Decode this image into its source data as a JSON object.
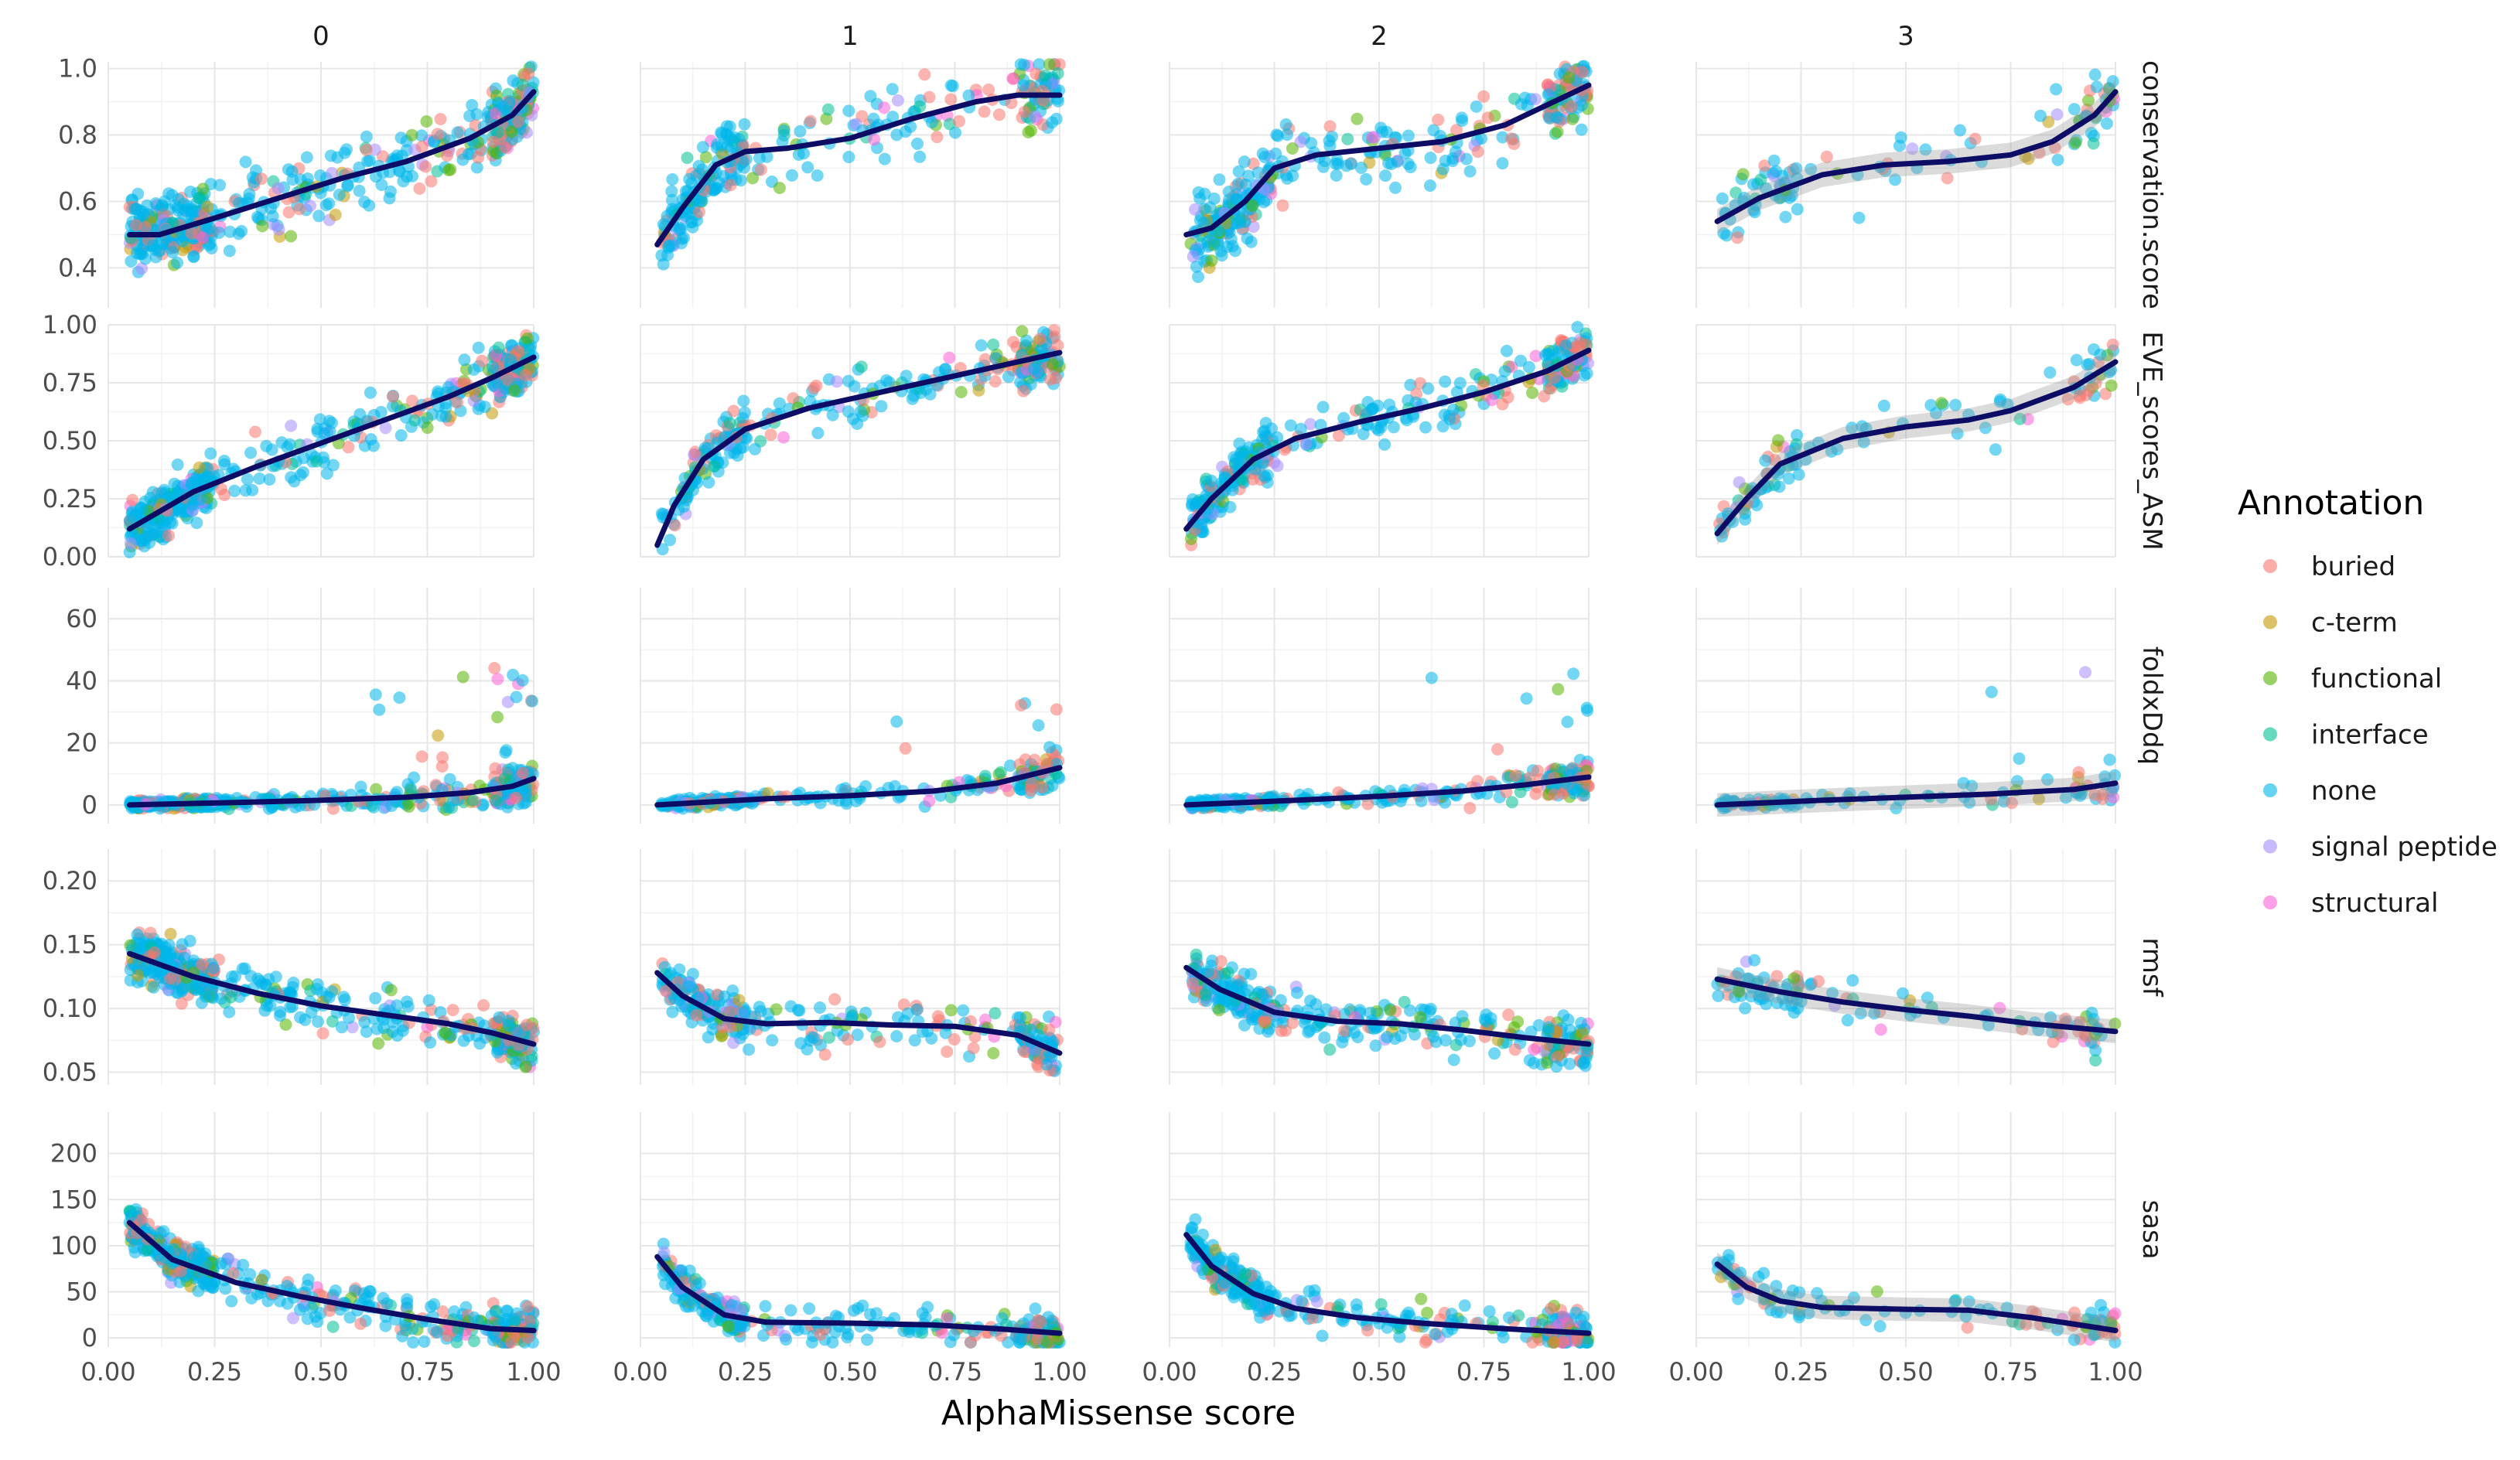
{
  "chart_data": {
    "type": "scatter",
    "layout": "facet_grid",
    "xlabel": "AlphaMissense score",
    "x_ticks": [
      "0.00",
      "0.25",
      "0.50",
      "0.75",
      "1.00"
    ],
    "xlim": [
      0.0,
      1.0
    ],
    "col_facets": [
      "0",
      "1",
      "2",
      "3"
    ],
    "row_facets": [
      {
        "name": "conservation.score",
        "ylim": [
          0.28,
          1.02
        ],
        "ticks": [
          {
            "v": 0.4,
            "label": "0.4"
          },
          {
            "v": 0.6,
            "label": "0.6"
          },
          {
            "v": 0.8,
            "label": "0.8"
          },
          {
            "v": 1.0,
            "label": "1.0"
          }
        ]
      },
      {
        "name": "EVE_scores_ASM",
        "ylim": [
          0.0,
          1.0
        ],
        "ticks": [
          {
            "v": 0.0,
            "label": "0.00"
          },
          {
            "v": 0.25,
            "label": "0.25"
          },
          {
            "v": 0.5,
            "label": "0.50"
          },
          {
            "v": 0.75,
            "label": "0.75"
          },
          {
            "v": 1.0,
            "label": "1.00"
          }
        ]
      },
      {
        "name": "foldxDdq",
        "ylim": [
          -6,
          70
        ],
        "ticks": [
          {
            "v": 0,
            "label": "0"
          },
          {
            "v": 20,
            "label": "20"
          },
          {
            "v": 40,
            "label": "40"
          },
          {
            "v": 60,
            "label": "60"
          }
        ]
      },
      {
        "name": "rmsf",
        "ylim": [
          0.04,
          0.225
        ],
        "ticks": [
          {
            "v": 0.05,
            "label": "0.05"
          },
          {
            "v": 0.1,
            "label": "0.10"
          },
          {
            "v": 0.15,
            "label": "0.15"
          },
          {
            "v": 0.2,
            "label": "0.20"
          }
        ]
      },
      {
        "name": "sasa",
        "ylim": [
          -10,
          245
        ],
        "ticks": [
          {
            "v": 0,
            "label": "0"
          },
          {
            "v": 50,
            "label": "50"
          },
          {
            "v": 100,
            "label": "100"
          },
          {
            "v": 150,
            "label": "150"
          },
          {
            "v": 200,
            "label": "200"
          }
        ]
      }
    ],
    "legend": {
      "title": "Annotation",
      "position": "right",
      "entries": [
        {
          "label": "buried",
          "color": "#F8766D"
        },
        {
          "label": "c-term",
          "color": "#C49A00"
        },
        {
          "label": "functional",
          "color": "#53B400"
        },
        {
          "label": "interface",
          "color": "#00C094"
        },
        {
          "label": "none",
          "color": "#00B6EB"
        },
        {
          "label": "signal peptide",
          "color": "#A58AFF"
        },
        {
          "label": "structural",
          "color": "#FB61D7"
        }
      ]
    },
    "smooth_color": "#0d0d66",
    "smooth_curves": [
      [
        [
          [
            0.05,
            0.5
          ],
          [
            0.12,
            0.5
          ],
          [
            0.25,
            0.55
          ],
          [
            0.4,
            0.61
          ],
          [
            0.55,
            0.67
          ],
          [
            0.7,
            0.72
          ],
          [
            0.85,
            0.79
          ],
          [
            0.95,
            0.86
          ],
          [
            1.0,
            0.93
          ]
        ],
        [
          [
            0.05,
            0.12
          ],
          [
            0.2,
            0.28
          ],
          [
            0.35,
            0.39
          ],
          [
            0.5,
            0.49
          ],
          [
            0.65,
            0.59
          ],
          [
            0.8,
            0.69
          ],
          [
            0.9,
            0.77
          ],
          [
            1.0,
            0.86
          ]
        ],
        [
          [
            0.05,
            0.0
          ],
          [
            0.3,
            0.8
          ],
          [
            0.5,
            1.5
          ],
          [
            0.7,
            2.5
          ],
          [
            0.85,
            4.0
          ],
          [
            0.95,
            6.0
          ],
          [
            1.0,
            8.5
          ]
        ],
        [
          [
            0.05,
            0.143
          ],
          [
            0.2,
            0.125
          ],
          [
            0.35,
            0.112
          ],
          [
            0.5,
            0.102
          ],
          [
            0.65,
            0.095
          ],
          [
            0.8,
            0.088
          ],
          [
            0.9,
            0.081
          ],
          [
            1.0,
            0.072
          ]
        ],
        [
          [
            0.05,
            125
          ],
          [
            0.15,
            85
          ],
          [
            0.3,
            60
          ],
          [
            0.45,
            45
          ],
          [
            0.6,
            32
          ],
          [
            0.75,
            20
          ],
          [
            0.9,
            10
          ],
          [
            1.0,
            8
          ]
        ]
      ],
      [
        [
          [
            0.04,
            0.47
          ],
          [
            0.1,
            0.58
          ],
          [
            0.18,
            0.71
          ],
          [
            0.25,
            0.75
          ],
          [
            0.35,
            0.76
          ],
          [
            0.5,
            0.79
          ],
          [
            0.65,
            0.85
          ],
          [
            0.8,
            0.9
          ],
          [
            0.9,
            0.92
          ],
          [
            1.0,
            0.92
          ]
        ],
        [
          [
            0.04,
            0.05
          ],
          [
            0.08,
            0.22
          ],
          [
            0.15,
            0.42
          ],
          [
            0.25,
            0.55
          ],
          [
            0.4,
            0.64
          ],
          [
            0.55,
            0.7
          ],
          [
            0.7,
            0.76
          ],
          [
            0.85,
            0.82
          ],
          [
            1.0,
            0.88
          ]
        ],
        [
          [
            0.04,
            0.0
          ],
          [
            0.3,
            2.0
          ],
          [
            0.5,
            3.0
          ],
          [
            0.7,
            4.5
          ],
          [
            0.85,
            7.0
          ],
          [
            1.0,
            12.0
          ]
        ],
        [
          [
            0.04,
            0.128
          ],
          [
            0.1,
            0.11
          ],
          [
            0.2,
            0.092
          ],
          [
            0.3,
            0.088
          ],
          [
            0.45,
            0.089
          ],
          [
            0.6,
            0.087
          ],
          [
            0.75,
            0.086
          ],
          [
            0.9,
            0.079
          ],
          [
            1.0,
            0.065
          ]
        ],
        [
          [
            0.04,
            88
          ],
          [
            0.1,
            55
          ],
          [
            0.2,
            25
          ],
          [
            0.3,
            17
          ],
          [
            0.5,
            16
          ],
          [
            0.7,
            14
          ],
          [
            0.85,
            10
          ],
          [
            1.0,
            5
          ]
        ]
      ],
      [
        [
          [
            0.04,
            0.5
          ],
          [
            0.1,
            0.52
          ],
          [
            0.18,
            0.6
          ],
          [
            0.25,
            0.7
          ],
          [
            0.35,
            0.74
          ],
          [
            0.5,
            0.76
          ],
          [
            0.65,
            0.78
          ],
          [
            0.8,
            0.83
          ],
          [
            0.9,
            0.89
          ],
          [
            1.0,
            0.95
          ]
        ],
        [
          [
            0.04,
            0.12
          ],
          [
            0.1,
            0.25
          ],
          [
            0.2,
            0.42
          ],
          [
            0.3,
            0.51
          ],
          [
            0.45,
            0.58
          ],
          [
            0.6,
            0.64
          ],
          [
            0.75,
            0.71
          ],
          [
            0.9,
            0.8
          ],
          [
            1.0,
            0.89
          ]
        ],
        [
          [
            0.04,
            0.0
          ],
          [
            0.3,
            1.5
          ],
          [
            0.5,
            2.8
          ],
          [
            0.7,
            4.5
          ],
          [
            0.85,
            6.5
          ],
          [
            1.0,
            9.0
          ]
        ],
        [
          [
            0.04,
            0.132
          ],
          [
            0.12,
            0.115
          ],
          [
            0.25,
            0.097
          ],
          [
            0.4,
            0.09
          ],
          [
            0.55,
            0.088
          ],
          [
            0.7,
            0.083
          ],
          [
            0.85,
            0.077
          ],
          [
            1.0,
            0.072
          ]
        ],
        [
          [
            0.04,
            112
          ],
          [
            0.1,
            78
          ],
          [
            0.2,
            48
          ],
          [
            0.3,
            32
          ],
          [
            0.45,
            22
          ],
          [
            0.6,
            16
          ],
          [
            0.8,
            10
          ],
          [
            1.0,
            5
          ]
        ]
      ],
      [
        [
          [
            0.05,
            0.54
          ],
          [
            0.15,
            0.61
          ],
          [
            0.3,
            0.68
          ],
          [
            0.45,
            0.71
          ],
          [
            0.6,
            0.72
          ],
          [
            0.75,
            0.74
          ],
          [
            0.85,
            0.78
          ],
          [
            0.95,
            0.86
          ],
          [
            1.0,
            0.93
          ]
        ],
        [
          [
            0.05,
            0.1
          ],
          [
            0.12,
            0.25
          ],
          [
            0.2,
            0.4
          ],
          [
            0.35,
            0.51
          ],
          [
            0.5,
            0.56
          ],
          [
            0.65,
            0.59
          ],
          [
            0.75,
            0.63
          ],
          [
            0.9,
            0.73
          ],
          [
            1.0,
            0.84
          ]
        ],
        [
          [
            0.05,
            0.0
          ],
          [
            0.3,
            1.5
          ],
          [
            0.5,
            2.5
          ],
          [
            0.7,
            3.5
          ],
          [
            0.9,
            5.0
          ],
          [
            1.0,
            7.0
          ]
        ],
        [
          [
            0.05,
            0.123
          ],
          [
            0.2,
            0.113
          ],
          [
            0.35,
            0.105
          ],
          [
            0.5,
            0.099
          ],
          [
            0.65,
            0.094
          ],
          [
            0.8,
            0.088
          ],
          [
            1.0,
            0.082
          ]
        ],
        [
          [
            0.05,
            80
          ],
          [
            0.12,
            55
          ],
          [
            0.2,
            40
          ],
          [
            0.3,
            33
          ],
          [
            0.5,
            31
          ],
          [
            0.65,
            30
          ],
          [
            0.8,
            22
          ],
          [
            1.0,
            8
          ]
        ]
      ]
    ]
  }
}
